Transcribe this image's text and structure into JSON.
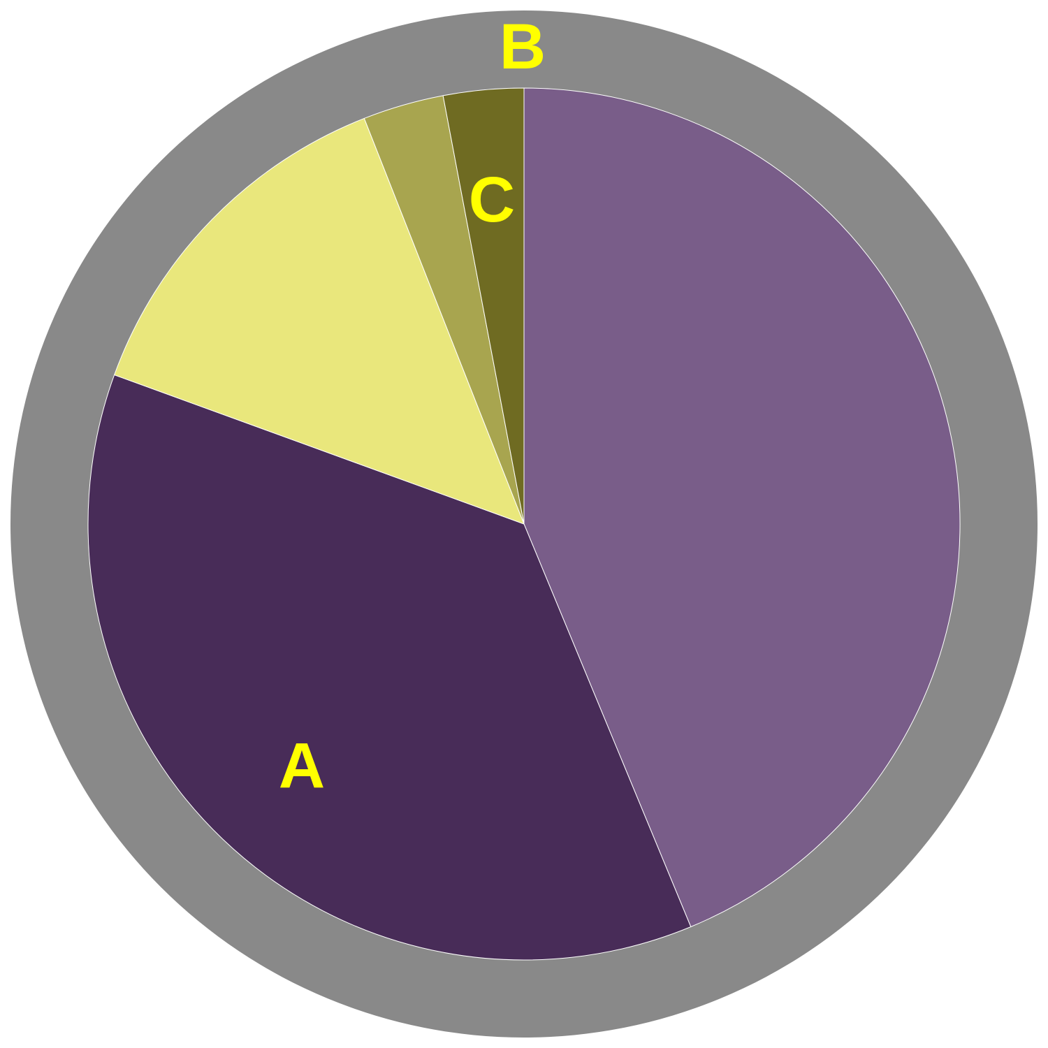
{
  "diagram": {
    "type": "circle-sector-diagram",
    "labels": {
      "a": "A",
      "b": "B",
      "c": "C"
    },
    "sectors": [
      {
        "name": "purple-sector",
        "start_deg": 0,
        "end_deg": 157.5,
        "color": "#795d89"
      },
      {
        "name": "region-a-sector",
        "start_deg": 157.5,
        "end_deg": 290,
        "color": "#482c58"
      },
      {
        "name": "light-yellow-sector",
        "start_deg": 290,
        "end_deg": 338.5,
        "color": "#e9e77c"
      },
      {
        "name": "olive-sector",
        "start_deg": 338.5,
        "end_deg": 349.3,
        "color": "#a8a54f"
      },
      {
        "name": "region-c-sector",
        "start_deg": 349.3,
        "end_deg": 360,
        "color": "#6f6b22"
      }
    ],
    "colors": {
      "outer_ring": "#898989",
      "label_text": "#ffff00",
      "sector_stroke": "#ffffff",
      "background": "#ffffff"
    }
  }
}
